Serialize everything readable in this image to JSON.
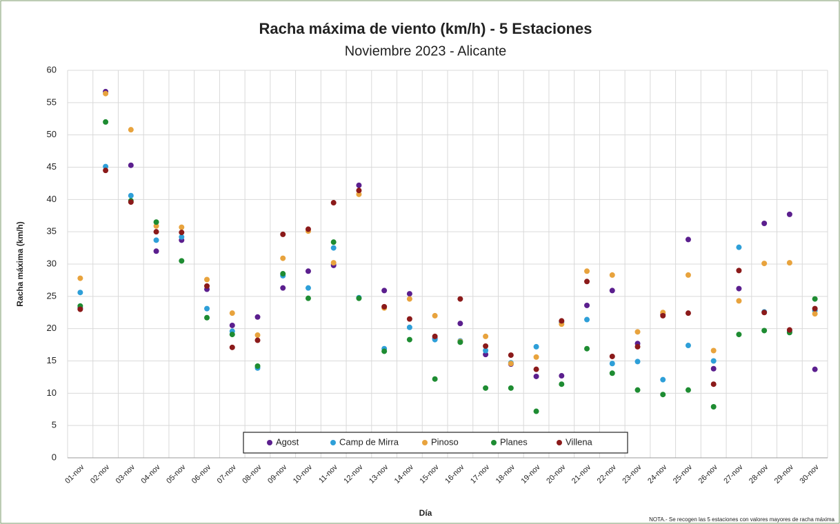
{
  "chart_data": {
    "type": "scatter",
    "title": "Racha máxima de viento (km/h) - 5 Estaciones",
    "subtitle": "Noviembre 2023 - Alicante",
    "y_label": "Racha máxima (km/h)",
    "x_label": "Día",
    "note": "NOTA.- Se recogen las 5 estaciones con valores mayores de racha máxima",
    "categories": [
      "01-nov",
      "02-nov",
      "03-nov",
      "04-nov",
      "05-nov",
      "06-nov",
      "07-nov",
      "08-nov",
      "09-nov",
      "10-nov",
      "11-nov",
      "12-nov",
      "13-nov",
      "14-nov",
      "15-nov",
      "16-nov",
      "17-nov",
      "18-nov",
      "19-nov",
      "20-nov",
      "21-nov",
      "22-nov",
      "23-nov",
      "24-nov",
      "25-nov",
      "26-nov",
      "27-nov",
      "28-nov",
      "29-nov",
      "30-nov"
    ],
    "series": [
      {
        "name": "Agost",
        "color": "#5b1f8e",
        "values": [
          23.2,
          56.7,
          45.3,
          32,
          33.7,
          26.1,
          20.5,
          21.8,
          26.3,
          28.9,
          29.8,
          42.2,
          25.9,
          25.4,
          18.5,
          20.8,
          16,
          14.5,
          12.6,
          12.7,
          23.6,
          25.9,
          17.7,
          22.2,
          33.8,
          13.8,
          26.2,
          36.3,
          37.7,
          13.7
        ]
      },
      {
        "name": "Camp de Mirra",
        "color": "#2e9fd8",
        "values": [
          25.6,
          45.1,
          40.6,
          33.7,
          34.2,
          23.1,
          19.6,
          13.9,
          28.2,
          26.3,
          32.5,
          24.8,
          16.9,
          20.2,
          18.3,
          18.1,
          16.6,
          14.7,
          17.2,
          21,
          21.4,
          14.6,
          14.9,
          12.1,
          17.4,
          15,
          32.6,
          22.6,
          19.6,
          22.8
        ]
      },
      {
        "name": "Pinoso",
        "color": "#e8a33d",
        "values": [
          27.8,
          56.4,
          50.8,
          35.9,
          35.7,
          27.6,
          22.4,
          19,
          30.9,
          35.1,
          30.2,
          40.8,
          23.2,
          24.6,
          22,
          18,
          18.8,
          14.6,
          15.6,
          20.7,
          28.9,
          28.3,
          19.5,
          22.5,
          28.3,
          16.6,
          24.3,
          30.1,
          30.2,
          22.3
        ]
      },
      {
        "name": "Planes",
        "color": "#1e8c32",
        "values": [
          23.5,
          52,
          39.8,
          36.5,
          30.5,
          21.7,
          19.1,
          14.2,
          28.5,
          24.7,
          33.4,
          24.7,
          16.5,
          18.3,
          12.2,
          17.9,
          10.8,
          10.8,
          7.2,
          11.4,
          16.9,
          13.1,
          10.5,
          9.8,
          10.5,
          7.9,
          19.1,
          19.7,
          19.4,
          24.6
        ]
      },
      {
        "name": "Villena",
        "color": "#8b1a1a",
        "values": [
          23,
          44.5,
          39.6,
          35,
          34.9,
          26.6,
          17.1,
          18.2,
          34.6,
          35.4,
          39.5,
          41.4,
          23.4,
          21.5,
          18.8,
          24.6,
          17.3,
          15.9,
          13.7,
          21.2,
          27.3,
          15.7,
          17.2,
          22,
          22.4,
          11.4,
          29,
          22.5,
          19.8,
          23.1
        ]
      }
    ],
    "ylim": [
      0,
      60
    ],
    "yticks": [
      0,
      5,
      10,
      15,
      20,
      25,
      30,
      35,
      40,
      45,
      50,
      55,
      60
    ],
    "grid": true,
    "legend": "bottom"
  }
}
